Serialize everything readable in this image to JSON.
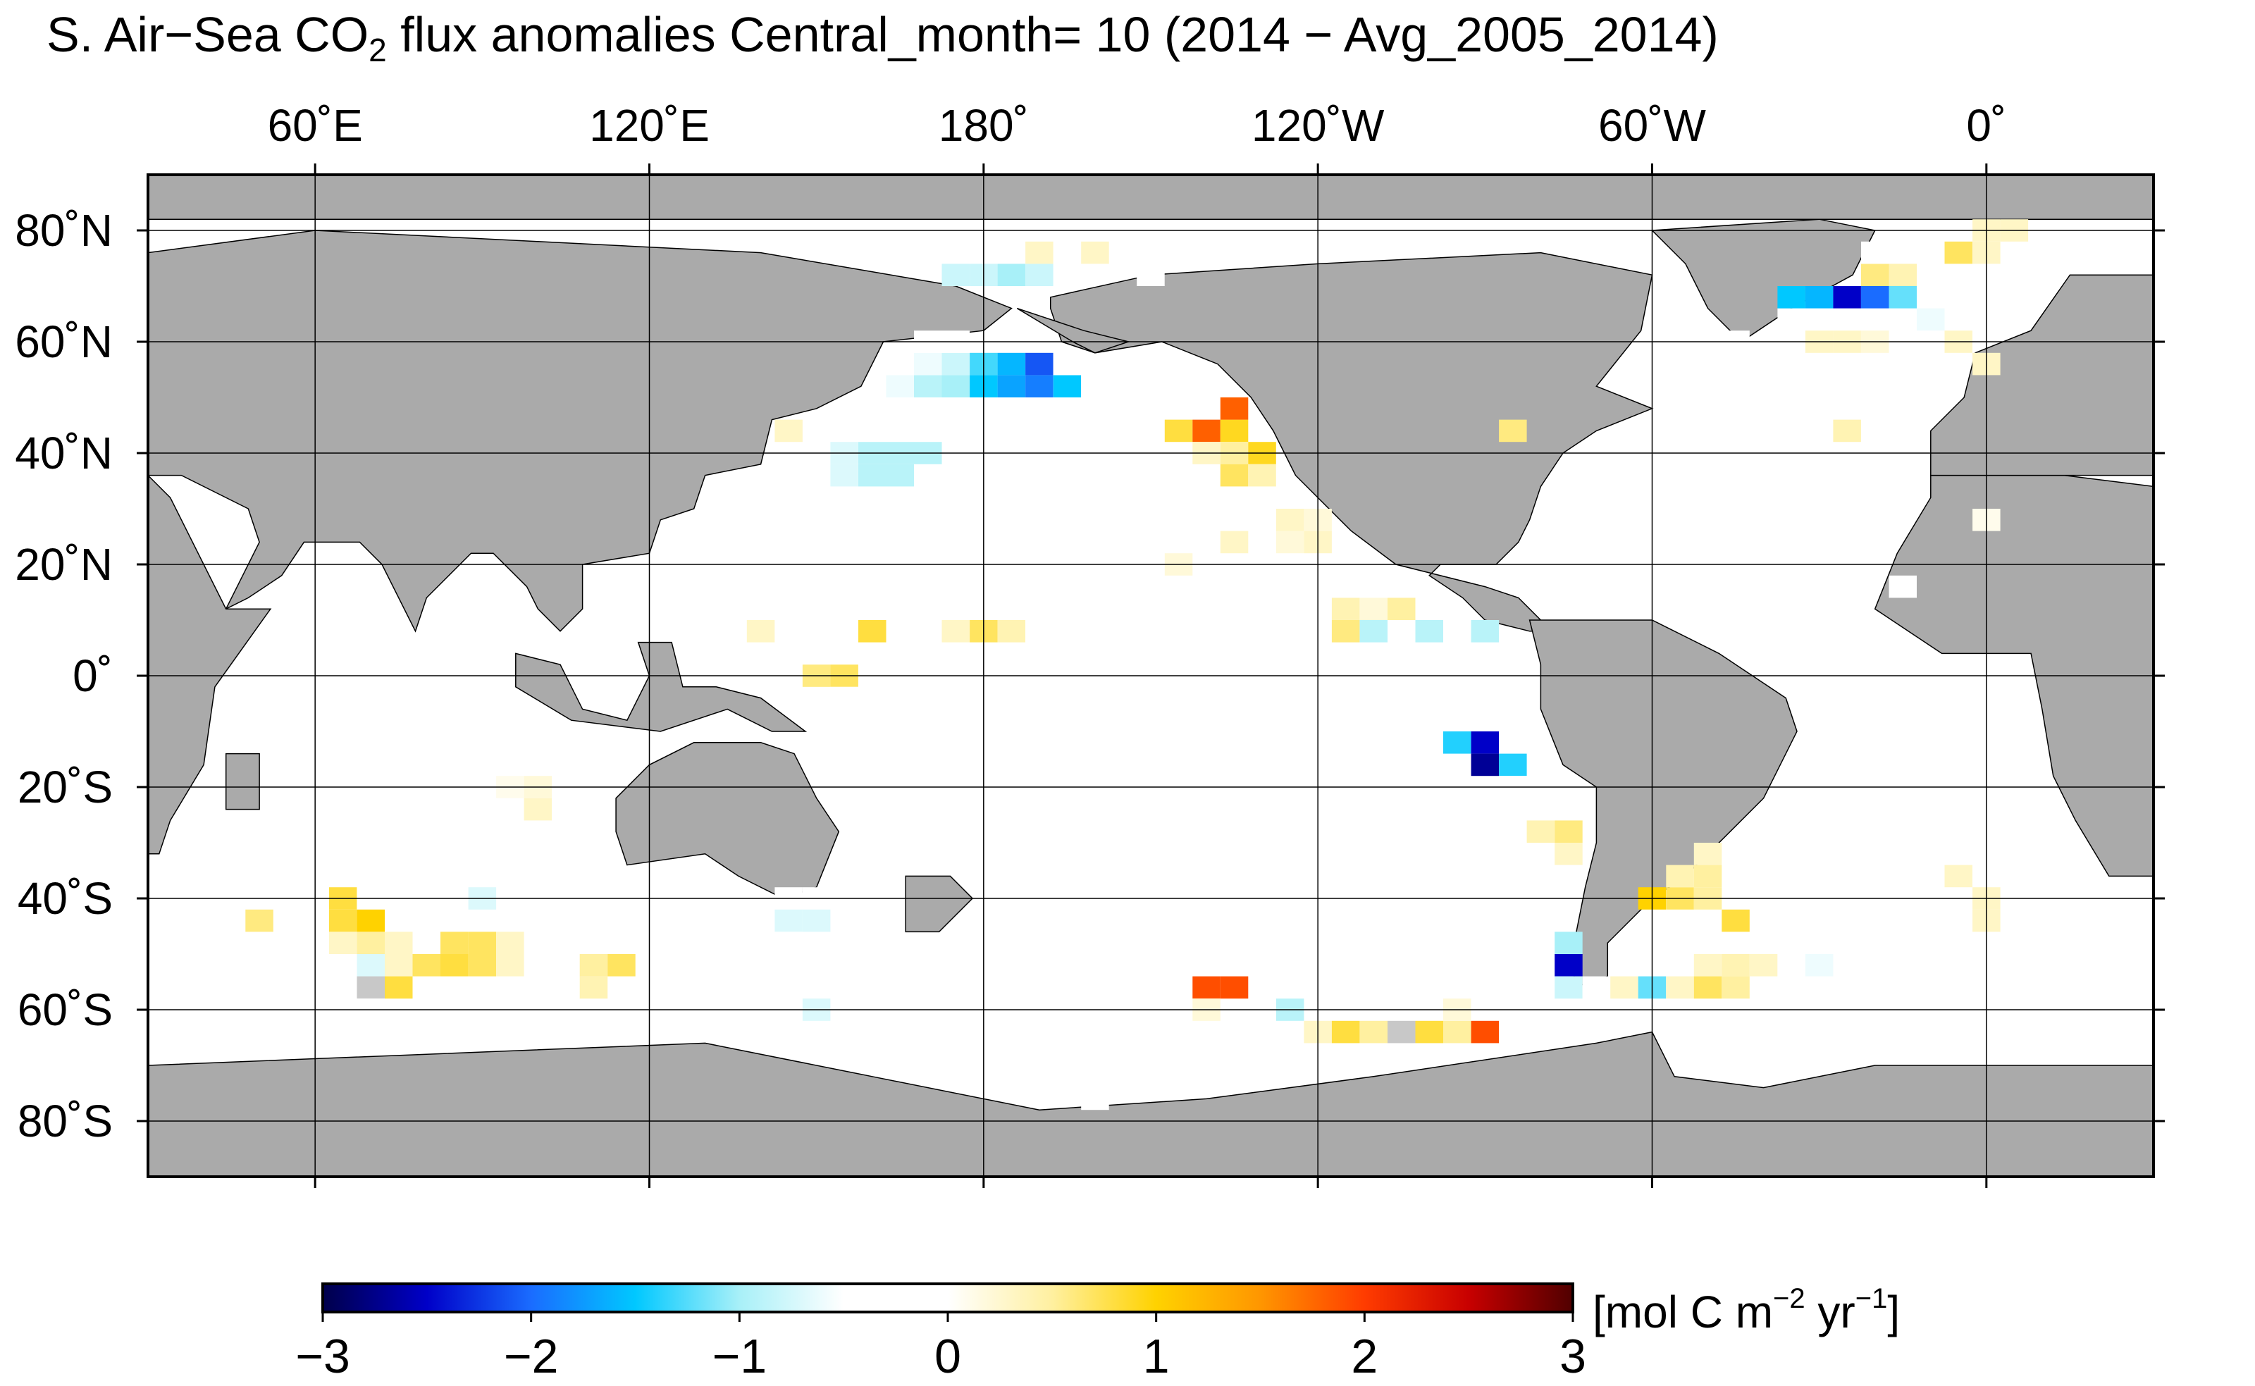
{
  "title": {
    "prefix": "S. Air−Sea CO",
    "subscript": "2",
    "suffix": " flux anomalies Central_month= 10 (2014 − Avg_2005_2014)"
  },
  "axes": {
    "lon_labels": [
      "60˚E",
      "120˚E",
      "180˚",
      "120˚W",
      "60˚W",
      "0˚"
    ],
    "lat_labels": [
      "80˚N",
      "60˚N",
      "40˚N",
      "20˚N",
      "0˚",
      "20˚S",
      "40˚S",
      "60˚S",
      "80˚S"
    ]
  },
  "colorbar": {
    "tick_labels": [
      "−3",
      "−2",
      "−1",
      "0",
      "1",
      "2",
      "3"
    ],
    "range": [
      -3,
      3
    ],
    "unit_prefix": "[mol C m",
    "unit_exp1": "−2",
    "unit_mid": " yr",
    "unit_exp2": "−1",
    "unit_suffix": "]",
    "colors": [
      "#00004a",
      "#0000c8",
      "#1a6cff",
      "#00c8ff",
      "#a8f0f8",
      "#ffffff",
      "#ffffff",
      "#fff0a0",
      "#ffd200",
      "#ff9600",
      "#ff3c00",
      "#c80000",
      "#500000"
    ]
  },
  "style": {
    "land": "#aaaaaa",
    "land_dark": "#999999",
    "missing": "#aaaaaa",
    "ocean": "#ffffff",
    "coast": "#000000"
  },
  "chart_data": {
    "type": "heatmap",
    "grid_resolution_deg": [
      5,
      4
    ],
    "lon_range": [
      30,
      390
    ],
    "lat_range": [
      -90,
      90
    ],
    "cells": [
      [
        175,
        72,
        -0.8
      ],
      [
        180,
        72,
        -0.8
      ],
      [
        185,
        72,
        -1.0
      ],
      [
        190,
        72,
        -0.8
      ],
      [
        190,
        76,
        0.3
      ],
      [
        200,
        76,
        0.3
      ],
      [
        210,
        72,
        -0.3
      ],
      [
        165,
        52,
        -0.6
      ],
      [
        170,
        52,
        -0.9
      ],
      [
        175,
        52,
        -1.0
      ],
      [
        180,
        52,
        -1.5
      ],
      [
        185,
        52,
        -1.7
      ],
      [
        190,
        52,
        -1.9
      ],
      [
        195,
        52,
        -1.5
      ],
      [
        165,
        56,
        -0.4
      ],
      [
        170,
        56,
        -0.6
      ],
      [
        175,
        56,
        -0.8
      ],
      [
        180,
        56,
        -1.3
      ],
      [
        185,
        56,
        -1.6
      ],
      [
        190,
        56,
        -2.1
      ],
      [
        195,
        56,
        -0.4
      ],
      [
        170,
        60,
        -0.3
      ],
      [
        175,
        60,
        -0.4
      ],
      [
        200,
        52,
        -0.2
      ],
      [
        205,
        52,
        -0.2
      ],
      [
        210,
        52,
        -0.2
      ],
      [
        155,
        36,
        -0.7
      ],
      [
        160,
        36,
        -0.9
      ],
      [
        165,
        36,
        -0.9
      ],
      [
        155,
        40,
        -0.7
      ],
      [
        160,
        40,
        -0.9
      ],
      [
        165,
        40,
        -0.9
      ],
      [
        170,
        40,
        -0.9
      ],
      [
        190,
        40,
        -0.1
      ],
      [
        200,
        36,
        -0.3
      ],
      [
        205,
        36,
        -0.2
      ],
      [
        215,
        44,
        0.8
      ],
      [
        220,
        44,
        1.8
      ],
      [
        225,
        44,
        0.9
      ],
      [
        225,
        48,
        1.8
      ],
      [
        220,
        40,
        0.3
      ],
      [
        225,
        40,
        0.5
      ],
      [
        230,
        40,
        0.9
      ],
      [
        225,
        36,
        0.7
      ],
      [
        230,
        36,
        0.4
      ],
      [
        225,
        24,
        0.3
      ],
      [
        235,
        24,
        0.2
      ],
      [
        240,
        24,
        0.3
      ],
      [
        235,
        28,
        0.3
      ],
      [
        240,
        28,
        0.2
      ],
      [
        215,
        20,
        0.2
      ],
      [
        145,
        44,
        0.3
      ],
      [
        140,
        8,
        0.3
      ],
      [
        160,
        8,
        0.8
      ],
      [
        175,
        8,
        0.3
      ],
      [
        180,
        8,
        0.7
      ],
      [
        185,
        8,
        0.4
      ],
      [
        190,
        8,
        -0.2
      ],
      [
        195,
        8,
        -0.5
      ],
      [
        195,
        0,
        -0.3
      ],
      [
        190,
        0,
        -0.1
      ],
      [
        200,
        0,
        -0.2
      ],
      [
        205,
        0,
        -0.1
      ],
      [
        210,
        4,
        -0.2
      ],
      [
        215,
        4,
        -0.2
      ],
      [
        220,
        4,
        -0.3
      ],
      [
        225,
        4,
        -0.3
      ],
      [
        230,
        4,
        -0.3
      ],
      [
        235,
        4,
        -0.2
      ],
      [
        150,
        0,
        0.6
      ],
      [
        155,
        0,
        0.7
      ],
      [
        155,
        -4,
        -0.4
      ],
      [
        245,
        12,
        0.4
      ],
      [
        250,
        12,
        0.2
      ],
      [
        255,
        12,
        0.5
      ],
      [
        245,
        8,
        0.6
      ],
      [
        250,
        8,
        -0.9
      ],
      [
        260,
        8,
        -0.9
      ],
      [
        265,
        8,
        -0.3
      ],
      [
        270,
        8,
        -0.9
      ],
      [
        265,
        -8,
        -0.3
      ],
      [
        270,
        -8,
        -0.3
      ],
      [
        265,
        -12,
        -1.4
      ],
      [
        270,
        -12,
        -2.5
      ],
      [
        270,
        -16,
        -2.7
      ],
      [
        275,
        -16,
        -1.4
      ],
      [
        275,
        -20,
        -0.2
      ],
      [
        280,
        -28,
        0.4
      ],
      [
        285,
        -28,
        0.6
      ],
      [
        285,
        -32,
        0.3
      ],
      [
        280,
        -44,
        -0.4
      ],
      [
        285,
        -48,
        -1.0
      ],
      [
        285,
        -52,
        -2.5
      ],
      [
        285,
        -56,
        -0.8
      ],
      [
        290,
        -56,
        -0.2
      ],
      [
        300,
        -40,
        1.0
      ],
      [
        305,
        -40,
        0.7
      ],
      [
        310,
        -40,
        0.5
      ],
      [
        305,
        -36,
        0.4
      ],
      [
        310,
        -36,
        0.5
      ],
      [
        310,
        -32,
        0.3
      ],
      [
        315,
        -44,
        0.8
      ],
      [
        305,
        -48,
        -0.2
      ],
      [
        310,
        -52,
        0.3
      ],
      [
        315,
        -52,
        0.4
      ],
      [
        320,
        -52,
        0.3
      ],
      [
        330,
        -52,
        -0.6
      ],
      [
        295,
        -56,
        0.3
      ],
      [
        300,
        -56,
        -1.2
      ],
      [
        305,
        -56,
        0.3
      ],
      [
        310,
        -56,
        0.7
      ],
      [
        315,
        -56,
        0.5
      ],
      [
        240,
        -64,
        0.3
      ],
      [
        245,
        -64,
        0.8
      ],
      [
        250,
        -64,
        0.5
      ],
      [
        255,
        -64,
        0.0
      ],
      [
        260,
        -64,
        0.8
      ],
      [
        265,
        -64,
        0.5
      ],
      [
        270,
        -64,
        1.9
      ],
      [
        265,
        -60,
        0.2
      ],
      [
        220,
        -56,
        1.9
      ],
      [
        225,
        -56,
        1.9
      ],
      [
        220,
        -60,
        0.2
      ],
      [
        235,
        -60,
        -0.9
      ],
      [
        230,
        -48,
        -0.3
      ],
      [
        285,
        -64,
        -0.5
      ],
      [
        200,
        -76,
        -0.3
      ],
      [
        50,
        -44,
        0.6
      ],
      [
        65,
        -36,
        -0.4
      ],
      [
        60,
        -40,
        -0.5
      ],
      [
        65,
        -40,
        0.8
      ],
      [
        65,
        -44,
        0.8
      ],
      [
        70,
        -44,
        1.0
      ],
      [
        65,
        -48,
        0.3
      ],
      [
        70,
        -48,
        0.5
      ],
      [
        75,
        -48,
        0.3
      ],
      [
        70,
        -52,
        -0.7
      ],
      [
        75,
        -52,
        0.3
      ],
      [
        80,
        -52,
        0.7
      ],
      [
        85,
        -52,
        0.8
      ],
      [
        90,
        -52,
        0.7
      ],
      [
        95,
        -52,
        0.3
      ],
      [
        85,
        -48,
        0.7
      ],
      [
        90,
        -48,
        0.7
      ],
      [
        95,
        -48,
        0.3
      ],
      [
        90,
        -40,
        -0.7
      ],
      [
        70,
        -56,
        0.0
      ],
      [
        75,
        -56,
        0.8
      ],
      [
        110,
        -52,
        0.5
      ],
      [
        115,
        -52,
        0.7
      ],
      [
        110,
        -56,
        0.4
      ],
      [
        125,
        -48,
        -0.3
      ],
      [
        130,
        -48,
        -0.5
      ],
      [
        100,
        -20,
        0.2
      ],
      [
        100,
        -24,
        0.3
      ],
      [
        95,
        -20,
        0.1
      ],
      [
        55,
        -60,
        -0.2
      ],
      [
        60,
        -60,
        -0.3
      ],
      [
        65,
        -60,
        -0.2
      ],
      [
        70,
        -60,
        -0.3
      ],
      [
        140,
        -60,
        -0.3
      ],
      [
        145,
        -60,
        -0.5
      ],
      [
        150,
        -60,
        -0.7
      ],
      [
        130,
        -60,
        -0.3
      ],
      [
        155,
        -40,
        -0.3
      ],
      [
        150,
        -40,
        -0.3
      ],
      [
        145,
        -40,
        -0.5
      ],
      [
        140,
        -44,
        -0.4
      ],
      [
        145,
        -44,
        -0.7
      ],
      [
        150,
        -44,
        -0.7
      ],
      [
        140,
        -48,
        -0.3
      ],
      [
        145,
        -48,
        -0.4
      ],
      [
        135,
        -44,
        -0.4
      ],
      [
        130,
        -44,
        -0.3
      ],
      [
        275,
        44,
        0.6
      ],
      [
        335,
        44,
        0.4
      ],
      [
        330,
        60,
        0.3
      ],
      [
        335,
        60,
        0.3
      ],
      [
        340,
        60,
        0.2
      ],
      [
        355,
        60,
        0.3
      ],
      [
        315,
        60,
        -0.3
      ],
      [
        325,
        64,
        -0.4
      ],
      [
        330,
        68,
        -1.6
      ],
      [
        335,
        68,
        -2.5
      ],
      [
        340,
        68,
        -2.0
      ],
      [
        345,
        68,
        -1.2
      ],
      [
        350,
        68,
        -0.4
      ],
      [
        325,
        68,
        -1.5
      ],
      [
        340,
        72,
        0.6
      ],
      [
        345,
        72,
        0.4
      ],
      [
        340,
        76,
        -0.2
      ],
      [
        355,
        76,
        0.7
      ],
      [
        360,
        76,
        0.3
      ],
      [
        360,
        80,
        0.3
      ],
      [
        365,
        80,
        0.3
      ],
      [
        360,
        56,
        0.3
      ],
      [
        345,
        60,
        -0.2
      ],
      [
        350,
        64,
        -0.6
      ],
      [
        355,
        -36,
        0.3
      ],
      [
        360,
        -40,
        0.3
      ],
      [
        360,
        -44,
        0.3
      ],
      [
        320,
        4,
        -0.2
      ],
      [
        360,
        28,
        0.1
      ],
      [
        345,
        16,
        -0.2
      ]
    ]
  }
}
